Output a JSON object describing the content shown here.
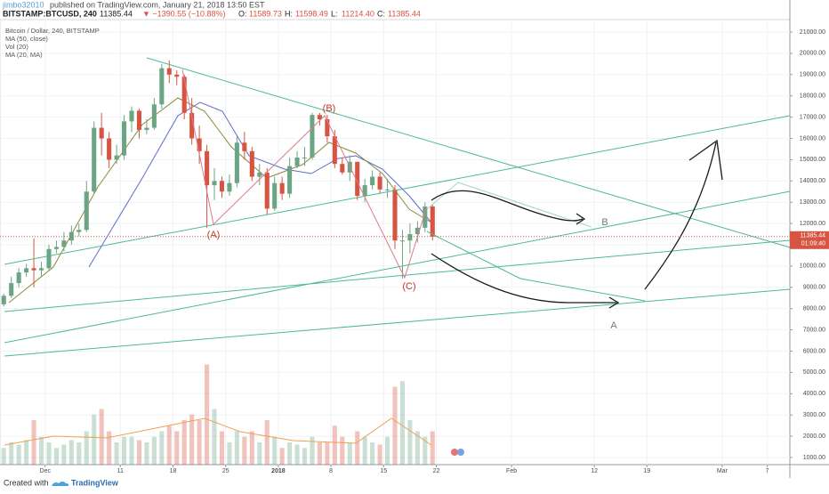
{
  "header": {
    "author": "jimbo32010",
    "published": "published on TradingView.com, January 21, 2018 13:50 EST",
    "symbol": "BITSTAMP:BTCUSD, 240",
    "quote": "11385.44",
    "change": "▼ −1390.55 (−10.88%)",
    "ohlc": [
      {
        "key": "O:",
        "value": "11589.73"
      },
      {
        "key": "H:",
        "value": "11598.49"
      },
      {
        "key": "L:",
        "value": "11214.40"
      },
      {
        "key": "C:",
        "value": "11385.44"
      }
    ]
  },
  "chart_data": {
    "type": "candlestick",
    "indicators": [
      "Bitcoin / Dollar, 240, BITSTAMP",
      "MA (50, close)",
      "Vol (20)",
      "MA (20, MA)"
    ],
    "up_color": "#6ba583",
    "down_color": "#d75442",
    "grid": true,
    "xlim": [
      "2017-11-25",
      "2018-03-10"
    ],
    "xticks": [
      {
        "value": "2017-12-01",
        "label": "Dec"
      },
      {
        "value": "2017-12-11",
        "label": "11"
      },
      {
        "value": "2017-12-18",
        "label": "18"
      },
      {
        "value": "2017-12-25",
        "label": "25"
      },
      {
        "value": "2018-01-01",
        "label": "2018"
      },
      {
        "value": "2018-01-08",
        "label": "8"
      },
      {
        "value": "2018-01-15",
        "label": "15"
      },
      {
        "value": "2018-01-22",
        "label": "22"
      },
      {
        "value": "2018-02-01",
        "label": "Feb"
      },
      {
        "value": "2018-02-12",
        "label": "12"
      },
      {
        "value": "2018-02-19",
        "label": "19"
      },
      {
        "value": "2018-03-01",
        "label": "Mar"
      },
      {
        "value": "2018-03-07",
        "label": "7"
      }
    ],
    "ylim": [
      665,
      21586
    ],
    "yticks": [
      {
        "value": 1000,
        "label": "1000.00"
      },
      {
        "value": 2000,
        "label": "2000.00"
      },
      {
        "value": 3000,
        "label": "3000.00"
      },
      {
        "value": 4000,
        "label": "4000.00"
      },
      {
        "value": 5000,
        "label": "5000.00"
      },
      {
        "value": 6000,
        "label": "6000.00"
      },
      {
        "value": 7000,
        "label": "7000.00"
      },
      {
        "value": 8000,
        "label": "8000.00"
      },
      {
        "value": 9000,
        "label": "9000.00"
      },
      {
        "value": 10000,
        "label": "10000.00"
      },
      {
        "value": 11000,
        "label": "11000.00"
      },
      {
        "value": 12000,
        "label": "12000.00"
      },
      {
        "value": 13000,
        "label": "13000.00"
      },
      {
        "value": 14000,
        "label": "14000.00"
      },
      {
        "value": 15000,
        "label": "15000.00"
      },
      {
        "value": 16000,
        "label": "16000.00"
      },
      {
        "value": 17000,
        "label": "17000.00"
      },
      {
        "value": 18000,
        "label": "18000.00"
      },
      {
        "value": 19000,
        "label": "19000.00"
      },
      {
        "value": 20000,
        "label": "20000.00"
      },
      {
        "value": 21000,
        "label": "21000.00"
      }
    ],
    "y2lim": [
      0,
      400
    ],
    "last_price": {
      "value": 11385.44,
      "label": "11385.44"
    },
    "countdown": "01:09:40",
    "dates": [
      "2017-11-25",
      "2017-11-26",
      "2017-11-27",
      "2017-11-28",
      "2017-11-29",
      "2017-11-30",
      "2017-12-01",
      "2017-12-02",
      "2017-12-03",
      "2017-12-04",
      "2017-12-05",
      "2017-12-06",
      "2017-12-07",
      "2017-12-08",
      "2017-12-09",
      "2017-12-10",
      "2017-12-11",
      "2017-12-12",
      "2017-12-13",
      "2017-12-14",
      "2017-12-15",
      "2017-12-16",
      "2017-12-17",
      "2017-12-18",
      "2017-12-19",
      "2017-12-20",
      "2017-12-21",
      "2017-12-22",
      "2017-12-23",
      "2017-12-24",
      "2017-12-25",
      "2017-12-26",
      "2017-12-27",
      "2017-12-28",
      "2017-12-29",
      "2017-12-30",
      "2017-12-31",
      "2018-01-01",
      "2018-01-02",
      "2018-01-03",
      "2018-01-04",
      "2018-01-05",
      "2018-01-06",
      "2018-01-07",
      "2018-01-08",
      "2018-01-09",
      "2018-01-10",
      "2018-01-11",
      "2018-01-12",
      "2018-01-13",
      "2018-01-14",
      "2018-01-15",
      "2018-01-16",
      "2018-01-17",
      "2018-01-18",
      "2018-01-19",
      "2018-01-20",
      "2018-01-21"
    ],
    "open": [
      8200,
      8600,
      9200,
      9700,
      9900,
      9800,
      9900,
      10800,
      10900,
      11200,
      11600,
      11700,
      13500,
      16500,
      16000,
      15000,
      15200,
      16800,
      17300,
      16400,
      16500,
      17600,
      19300,
      19000,
      18900,
      17200,
      16000,
      15400,
      13800,
      14000,
      13500,
      13900,
      15800,
      15400,
      14200,
      14400,
      12700,
      13900,
      13400,
      14700,
      15100,
      15100,
      17100,
      16900,
      16100,
      14800,
      14400,
      14900,
      13300,
      13800,
      14200,
      13600,
      13600,
      11200,
      11200,
      11500,
      11800,
      12800
    ],
    "high": [
      8700,
      9500,
      9900,
      10100,
      11300,
      10200,
      11000,
      11200,
      11600,
      11900,
      12000,
      14000,
      16800,
      17200,
      16300,
      15700,
      17100,
      17500,
      17400,
      16900,
      17900,
      19500,
      19666,
      19200,
      19000,
      17900,
      16600,
      15700,
      14600,
      14200,
      14300,
      16100,
      16300,
      15600,
      14800,
      14600,
      14200,
      14200,
      15100,
      15400,
      15600,
      17200,
      17200,
      17100,
      16400,
      15100,
      15200,
      14900,
      14100,
      14500,
      14400,
      14100,
      13800,
      11700,
      12000,
      12100,
      13000,
      12900
    ],
    "low": [
      8100,
      8500,
      9000,
      9500,
      9000,
      9500,
      9800,
      10600,
      10700,
      11000,
      11400,
      11600,
      13400,
      15200,
      14600,
      14800,
      15000,
      16300,
      16000,
      16200,
      16400,
      17400,
      18600,
      18500,
      16900,
      15700,
      14800,
      11800,
      13100,
      13200,
      13300,
      13700,
      15000,
      14000,
      13800,
      12400,
      12600,
      13100,
      13200,
      14600,
      14700,
      15000,
      16600,
      15800,
      14600,
      14300,
      14000,
      13100,
      13000,
      13600,
      13400,
      13200,
      10800,
      9400,
      10600,
      11100,
      11600,
      11200
    ],
    "close": [
      8600,
      9200,
      9700,
      9900,
      9800,
      9900,
      10800,
      10900,
      11200,
      11600,
      11700,
      13500,
      16500,
      16000,
      15000,
      15200,
      16800,
      17300,
      16400,
      16500,
      17600,
      19300,
      19000,
      18900,
      17200,
      16000,
      15400,
      13800,
      14000,
      13500,
      13900,
      15800,
      15400,
      14200,
      14400,
      12700,
      13900,
      13400,
      14700,
      15100,
      15100,
      17100,
      16900,
      16100,
      14800,
      14400,
      14900,
      13300,
      13800,
      14200,
      13600,
      13600,
      11200,
      11200,
      11500,
      11800,
      12800,
      11385.44
    ],
    "volume": [
      15,
      20,
      18,
      22,
      40,
      25,
      20,
      15,
      18,
      22,
      20,
      30,
      45,
      50,
      30,
      20,
      25,
      25,
      22,
      20,
      25,
      30,
      35,
      30,
      40,
      45,
      40,
      90,
      50,
      30,
      20,
      30,
      25,
      30,
      20,
      40,
      25,
      15,
      20,
      18,
      15,
      25,
      20,
      20,
      35,
      25,
      20,
      30,
      25,
      20,
      18,
      25,
      70,
      75,
      40,
      30,
      25,
      30
    ],
    "annotations": [
      "(A)",
      "(B)",
      "(C)",
      "A",
      "B"
    ]
  },
  "footer": {
    "created": "Created with",
    "brand": "TradingView"
  }
}
